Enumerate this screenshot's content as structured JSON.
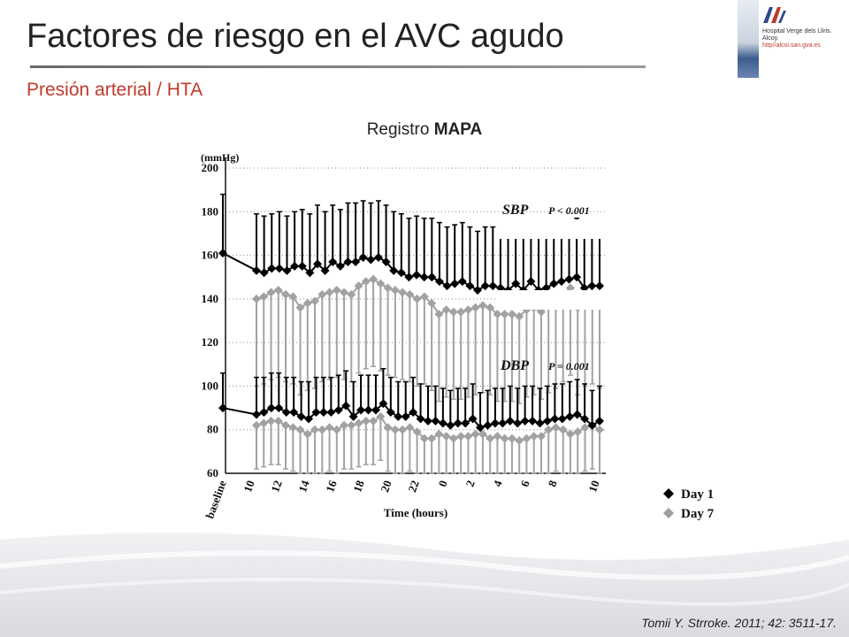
{
  "slide": {
    "title": "Factores de riesgo en el AVC agudo",
    "subtitle": "Presión arterial / HTA",
    "caption_prefix": "Registro ",
    "caption_bold": "MAPA",
    "citation": "Tomii Y. Strroke. 2011; 42: 3511-17."
  },
  "hospital": {
    "line1": "Hospital Verge dels Lliris.",
    "line2": "Alcoy.",
    "url": "http//alcoi.san.gva.es",
    "colors": {
      "logo_red": "#c0392b",
      "logo_blue": "#2e4a8a"
    }
  },
  "chart_data": {
    "type": "line",
    "ylabel": "(mmHg)",
    "xlabel": "Time (hours)",
    "ylim": [
      60,
      200
    ],
    "yticks": [
      60,
      80,
      100,
      120,
      140,
      160,
      180,
      200
    ],
    "xtick_labels": [
      "baseline",
      "10",
      "12",
      "14",
      "16",
      "18",
      "20",
      "22",
      "0",
      "2",
      "4",
      "6",
      "8",
      "10"
    ],
    "grid": "dotted horizontal",
    "legend_position": "bottom-right",
    "legend": [
      {
        "name": "Day 1",
        "color": "#000000"
      },
      {
        "name": "Day 7",
        "color": "#9e9e9e"
      }
    ],
    "annotations": [
      {
        "label": "SBP",
        "stat": "P < 0.001"
      },
      {
        "label": "DBP",
        "stat": "P = 0.001"
      }
    ],
    "sbp_day1": {
      "baseline": {
        "mean": 161,
        "upper": 188
      },
      "mean": [
        153,
        152,
        154,
        154,
        153,
        155,
        155,
        152,
        156,
        153,
        157,
        155,
        157,
        157,
        159,
        158,
        159,
        157,
        153,
        152,
        150,
        151,
        150,
        150,
        148,
        146,
        147,
        148,
        146,
        144,
        146,
        146,
        145,
        144,
        147,
        144,
        148,
        144,
        145,
        147,
        148,
        149,
        150,
        145,
        146,
        146
      ],
      "upper": [
        179,
        178,
        179,
        180,
        178,
        180,
        181,
        179,
        183,
        180,
        183,
        181,
        184,
        184,
        185,
        184,
        185,
        183,
        180,
        179,
        177,
        178,
        177,
        177,
        175,
        173,
        174,
        175,
        173,
        171,
        173,
        173,
        172,
        171,
        174,
        171,
        175,
        171,
        172,
        174,
        175,
        176,
        177,
        172,
        173,
        173
      ]
    },
    "sbp_day7": {
      "mean": [
        140,
        141,
        143,
        144,
        142,
        141,
        136,
        138,
        139,
        142,
        143,
        144,
        143,
        142,
        146,
        148,
        149,
        147,
        145,
        144,
        143,
        142,
        140,
        141,
        138,
        133,
        135,
        134,
        134,
        135,
        136,
        137,
        136,
        133,
        133,
        133,
        132,
        135,
        136,
        134,
        137,
        139,
        142,
        145,
        136,
        140,
        141,
        139
      ],
      "lower": [
        100,
        101,
        103,
        104,
        102,
        101,
        96,
        98,
        99,
        102,
        103,
        104,
        103,
        102,
        106,
        108,
        109,
        107,
        105,
        104,
        103,
        102,
        100,
        101,
        98,
        93,
        95,
        94,
        94,
        95,
        96,
        97,
        96,
        93,
        93,
        93,
        92,
        95,
        96,
        94,
        97,
        99,
        102,
        105,
        96,
        100,
        101,
        99
      ]
    },
    "dbp_day1": {
      "baseline": {
        "mean": 90,
        "upper": 106
      },
      "mean": [
        87,
        88,
        90,
        90,
        88,
        88,
        86,
        85,
        88,
        88,
        88,
        89,
        91,
        86,
        89,
        89,
        89,
        92,
        88,
        86,
        86,
        88,
        85,
        84,
        84,
        83,
        82,
        83,
        83,
        85,
        81,
        82,
        83,
        83,
        84,
        83,
        84,
        84,
        83,
        84,
        85,
        85,
        86,
        87,
        85,
        82,
        84
      ],
      "upper": [
        104,
        104,
        106,
        106,
        104,
        104,
        102,
        102,
        104,
        104,
        104,
        105,
        107,
        102,
        105,
        105,
        105,
        108,
        104,
        102,
        102,
        104,
        101,
        100,
        100,
        99,
        98,
        99,
        99,
        101,
        97,
        98,
        99,
        99,
        100,
        99,
        100,
        100,
        99,
        100,
        101,
        101,
        102,
        103,
        101,
        98,
        100
      ]
    },
    "dbp_day7": {
      "mean": [
        82,
        83,
        84,
        84,
        82,
        81,
        80,
        78,
        80,
        80,
        81,
        80,
        82,
        82,
        83,
        84,
        84,
        86,
        81,
        80,
        80,
        81,
        79,
        76,
        76,
        78,
        77,
        76,
        77,
        77,
        78,
        78,
        76,
        77,
        76,
        76,
        75,
        76,
        77,
        77,
        80,
        81,
        80,
        78,
        79,
        81,
        82,
        80
      ],
      "lower": [
        62,
        63,
        64,
        64,
        62,
        61,
        60,
        60,
        60,
        60,
        61,
        60,
        62,
        62,
        63,
        64,
        64,
        66,
        61,
        60,
        60,
        61,
        60,
        60,
        60,
        60,
        60,
        60,
        60,
        60,
        60,
        60,
        60,
        60,
        60,
        60,
        60,
        60,
        60,
        60,
        60,
        61,
        60,
        60,
        60,
        61,
        62,
        60
      ]
    }
  }
}
